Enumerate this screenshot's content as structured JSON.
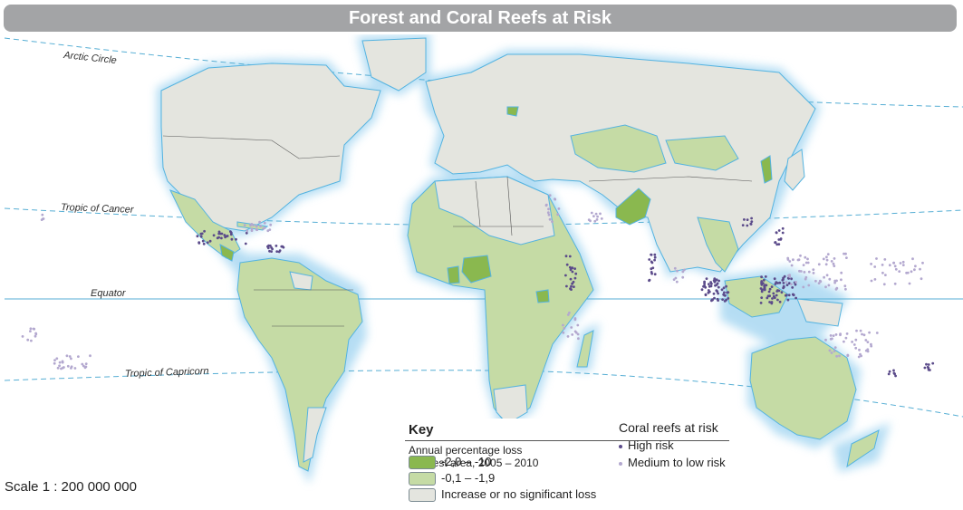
{
  "title": "Forest and Coral Reefs at Risk",
  "lines": {
    "arctic": "Arctic Circle",
    "cancer": "Tropic of Cancer",
    "equator": "Equator",
    "capricorn": "Tropic of Capricorn"
  },
  "key": {
    "title": "Key",
    "forest_heading_line1": "Annual percentage loss",
    "forest_heading_line2": "in forest area, 2005 – 2010",
    "forest_classes": [
      {
        "label": "-2,0 – -10",
        "color": "#8ab84f"
      },
      {
        "label": "-0,1 – -1,9",
        "color": "#c5dba5"
      },
      {
        "label": "Increase or no significant loss",
        "color": "#e4e5df"
      }
    ],
    "reef_heading": "Coral reefs at risk",
    "reef_classes": [
      {
        "label": "High risk",
        "color": "#5b4b8a"
      },
      {
        "label": "Medium to low risk",
        "color": "#b3a8cf"
      }
    ]
  },
  "scale": "Scale 1 : 200 000 000",
  "colors": {
    "coast_glow": "#a9d8f2",
    "coastline": "#54b3e0",
    "border": "#555555",
    "title_bar": "#a3a4a6"
  }
}
